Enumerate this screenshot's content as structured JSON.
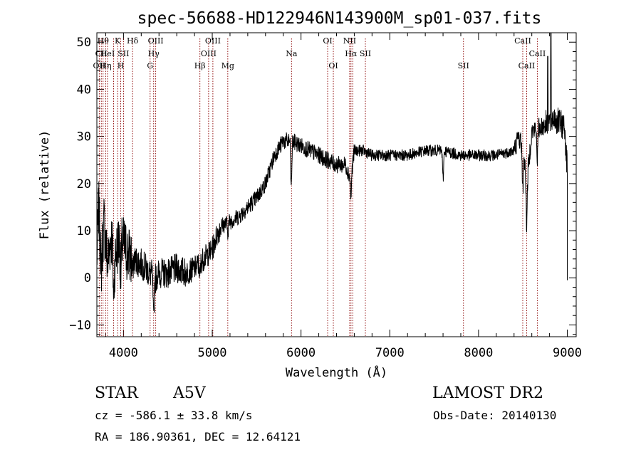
{
  "chart_data": {
    "type": "line",
    "title": "spec-56688-HD122946N143900M_sp01-037.fits",
    "xlabel": "Wavelength (Å)",
    "ylabel": "Flux (relative)",
    "xlim": [
      3700,
      9100
    ],
    "ylim": [
      -12.5,
      52
    ],
    "x_ticks": [
      4000,
      5000,
      6000,
      7000,
      8000,
      9000
    ],
    "y_ticks": [
      -10,
      0,
      10,
      20,
      30,
      40,
      50
    ],
    "grid": false,
    "line_color": "#000000",
    "marker_color": "#8b0000",
    "spectrum_anchors": [
      [
        3700,
        4
      ],
      [
        3720,
        15
      ],
      [
        3750,
        2
      ],
      [
        3780,
        12
      ],
      [
        3820,
        3
      ],
      [
        3860,
        9
      ],
      [
        3900,
        4
      ],
      [
        3950,
        8
      ],
      [
        4000,
        7
      ],
      [
        4050,
        5
      ],
      [
        4100,
        4
      ],
      [
        4200,
        3
      ],
      [
        4300,
        1
      ],
      [
        4360,
        0
      ],
      [
        4400,
        1
      ],
      [
        4500,
        1
      ],
      [
        4600,
        2
      ],
      [
        4700,
        1
      ],
      [
        4800,
        2
      ],
      [
        4900,
        4
      ],
      [
        5000,
        6
      ],
      [
        5050,
        9
      ],
      [
        5100,
        11
      ],
      [
        5200,
        12
      ],
      [
        5300,
        13
      ],
      [
        5400,
        15
      ],
      [
        5500,
        17
      ],
      [
        5600,
        20
      ],
      [
        5650,
        23
      ],
      [
        5700,
        26
      ],
      [
        5800,
        29
      ],
      [
        5900,
        29
      ],
      [
        6000,
        28
      ],
      [
        6100,
        27
      ],
      [
        6200,
        26
      ],
      [
        6300,
        25
      ],
      [
        6400,
        24
      ],
      [
        6500,
        24
      ],
      [
        6560,
        21
      ],
      [
        6600,
        27
      ],
      [
        6700,
        27
      ],
      [
        6800,
        26
      ],
      [
        7000,
        26
      ],
      [
        7200,
        26
      ],
      [
        7400,
        27
      ],
      [
        7600,
        27
      ],
      [
        7800,
        26
      ],
      [
        8000,
        26
      ],
      [
        8200,
        26
      ],
      [
        8400,
        27
      ],
      [
        8450,
        30
      ],
      [
        8500,
        28
      ],
      [
        8542,
        20
      ],
      [
        8600,
        31
      ],
      [
        8700,
        32
      ],
      [
        8800,
        33
      ],
      [
        8850,
        34
      ],
      [
        8900,
        33
      ],
      [
        8970,
        32
      ],
      [
        9000,
        23
      ]
    ],
    "spectrum_absorption": [
      [
        3889,
        -9
      ],
      [
        3970,
        -7
      ],
      [
        4102,
        -3
      ],
      [
        4340,
        -10
      ],
      [
        4861,
        -3
      ],
      [
        5175,
        -2
      ],
      [
        5890,
        -10
      ],
      [
        6563,
        -4
      ],
      [
        7600,
        -6
      ],
      [
        8498,
        -10
      ],
      [
        8542,
        -9
      ],
      [
        8662,
        -6
      ]
    ],
    "line_markers": [
      {
        "x": 3727,
        "label": "OII",
        "row": 2
      },
      {
        "x": 3750,
        "label": "CII",
        "row": 1
      },
      {
        "x": 3770,
        "label": "Hθ",
        "row": 0
      },
      {
        "x": 3800,
        "label": "Hη",
        "row": 2
      },
      {
        "x": 3820,
        "label": "HeI",
        "row": 1
      },
      {
        "x": 3889,
        "label": "",
        "row": 0
      },
      {
        "x": 3934,
        "label": "K",
        "row": 0
      },
      {
        "x": 3969,
        "label": "H",
        "row": 2
      },
      {
        "x": 4000,
        "label": "SII",
        "row": 1
      },
      {
        "x": 4102,
        "label": "Hδ",
        "row": 0
      },
      {
        "x": 4300,
        "label": "G",
        "row": 2
      },
      {
        "x": 4340,
        "label": "Hγ",
        "row": 1
      },
      {
        "x": 4363,
        "label": "OIII",
        "row": 0
      },
      {
        "x": 4861,
        "label": "Hβ",
        "row": 2
      },
      {
        "x": 4959,
        "label": "OIII",
        "row": 1
      },
      {
        "x": 5007,
        "label": "OIII",
        "row": 0
      },
      {
        "x": 5175,
        "label": "Mg",
        "row": 2
      },
      {
        "x": 5893,
        "label": "Na",
        "row": 1
      },
      {
        "x": 6300,
        "label": "OI",
        "row": 0
      },
      {
        "x": 6364,
        "label": "OI",
        "row": 2
      },
      {
        "x": 6548,
        "label": "NII",
        "row": 0
      },
      {
        "x": 6563,
        "label": "Hα",
        "row": 1
      },
      {
        "x": 6583,
        "label": "",
        "row": 0
      },
      {
        "x": 6725,
        "label": "SII",
        "row": 1
      },
      {
        "x": 7830,
        "label": "SII",
        "row": 2
      },
      {
        "x": 8498,
        "label": "CaII",
        "row": 0
      },
      {
        "x": 8542,
        "label": "CaII",
        "row": 2
      },
      {
        "x": 8662,
        "label": "CaII",
        "row": 1
      }
    ]
  },
  "info": {
    "object_class": "STAR",
    "subclass": "A5V",
    "survey": "LAMOST DR2",
    "velocity": "cz = -586.1 ± 33.8 km/s",
    "obs_date": "Obs-Date: 20140130",
    "coordinates": "RA = 186.90361, DEC =  12.64121"
  }
}
